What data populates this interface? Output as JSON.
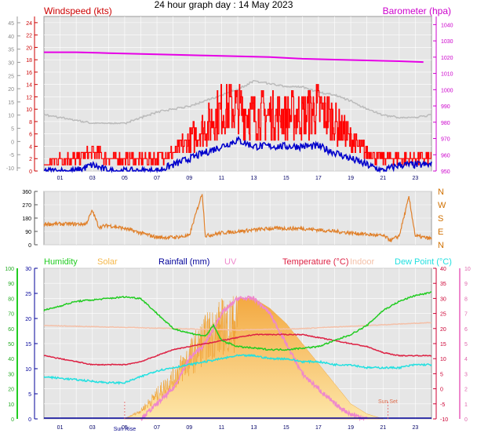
{
  "title": "24 hour graph day : 14 May 2023",
  "colors": {
    "wind_gust": "#ff0000",
    "wind_avg": "#0000cc",
    "barometer": "#e600e6",
    "temp_outdoor_prev": "#bbbbbb",
    "wind_dir": "#e0802a",
    "humidity": "#22cc22",
    "solar": "#f5b84a",
    "rainfall": "#000099",
    "uv": "#ee88cc",
    "temperature": "#dd2244",
    "indoor": "#f4c0a8",
    "dew_point": "#22e0e0",
    "panel_bg": "#e6e6e6",
    "grid": "#ffffff",
    "sun_line": "#e86060"
  },
  "chart_data": [
    {
      "type": "line",
      "name": "wind-barometer",
      "left_axis_outer": {
        "ticks": [
          "45",
          "40",
          "35",
          "30",
          "25",
          "20",
          "15",
          "10",
          "5",
          "0",
          "-5",
          "-10"
        ],
        "color": "#888888"
      },
      "left_axis_inner": {
        "label": "Windspeed (kts)",
        "ticks": [
          "24",
          "22",
          "20",
          "18",
          "16",
          "14",
          "12",
          "10",
          "8",
          "6",
          "4",
          "2",
          "0"
        ],
        "range": [
          0,
          25
        ],
        "color": "#cc0000"
      },
      "right_axis": {
        "label": "Barometer (hpa)",
        "ticks": [
          "1040",
          "1030",
          "1020",
          "1010",
          "1000",
          "990",
          "980",
          "970",
          "960",
          "950"
        ],
        "range": [
          950,
          1045
        ],
        "color": "#cc00cc"
      },
      "x_ticks": [
        "01",
        "03",
        "05",
        "07",
        "09",
        "11",
        "13",
        "15",
        "17",
        "19",
        "21",
        "23"
      ],
      "series": [
        {
          "key": "gust",
          "hours": [
            0,
            1,
            2,
            3,
            4,
            5,
            6,
            7,
            8,
            9,
            10,
            11,
            12,
            13,
            14,
            15,
            16,
            17,
            18,
            19,
            20,
            21,
            22,
            23,
            24
          ],
          "values": [
            1,
            2,
            2,
            3,
            2,
            2,
            2,
            2,
            3,
            5,
            7,
            10,
            10,
            9,
            9,
            9,
            9,
            10,
            8,
            5,
            3,
            2,
            2,
            2,
            2
          ]
        },
        {
          "key": "avg",
          "hours": [
            0,
            1,
            2,
            3,
            4,
            5,
            6,
            7,
            8,
            9,
            10,
            11,
            12,
            13,
            14,
            15,
            16,
            17,
            18,
            19,
            20,
            21,
            22,
            23,
            24
          ],
          "values": [
            0,
            0,
            0,
            1,
            0,
            0,
            0,
            0,
            1,
            2,
            3,
            4,
            5,
            4,
            4,
            4,
            4,
            4,
            3,
            2,
            1,
            0,
            1,
            1,
            1
          ]
        },
        {
          "key": "barometer",
          "hours": [
            0,
            2,
            4,
            6,
            8,
            10,
            12,
            14,
            16,
            18,
            20,
            22,
            23.5
          ],
          "values": [
            1023,
            1023,
            1022.5,
            1022,
            1021.5,
            1021,
            1020.5,
            1020,
            1019,
            1018.5,
            1018,
            1017.5,
            1017
          ]
        },
        {
          "key": "grey",
          "hours": [
            0,
            1,
            2,
            3,
            4,
            5,
            6,
            7,
            8,
            9,
            10,
            11,
            12,
            13,
            14,
            15,
            16,
            17,
            18,
            19,
            20,
            21,
            22,
            23,
            24
          ],
          "values": [
            10,
            9,
            8,
            7,
            7,
            7,
            9,
            11,
            12,
            13,
            15,
            17,
            19,
            22,
            21,
            20,
            20,
            18,
            17,
            15,
            12,
            10,
            9,
            9,
            10
          ]
        }
      ]
    },
    {
      "type": "line",
      "name": "wind-direction",
      "left_axis": {
        "ticks": [
          "360",
          "270",
          "180",
          "90",
          "0"
        ],
        "range": [
          0,
          360
        ]
      },
      "right_axis": {
        "ticks": [
          "N",
          "W",
          "S",
          "E",
          "N"
        ]
      },
      "series": [
        {
          "key": "direction",
          "hours": [
            0,
            1,
            2,
            2.6,
            3,
            3.4,
            4,
            5,
            6,
            7,
            8,
            9,
            9.8,
            10,
            11,
            12,
            13,
            14,
            15,
            16,
            17,
            18,
            19,
            20,
            21,
            21.5,
            22,
            22.6,
            23,
            24
          ],
          "values": [
            140,
            140,
            140,
            140,
            230,
            120,
            130,
            110,
            80,
            50,
            50,
            60,
            350,
            60,
            80,
            90,
            100,
            110,
            110,
            110,
            100,
            90,
            80,
            70,
            60,
            30,
            60,
            320,
            60,
            40
          ]
        }
      ]
    },
    {
      "type": "area",
      "name": "climate",
      "legend": [
        "Humidity",
        "Solar",
        "Rainfall (mm)",
        "UV",
        "Temperature (°C)",
        "Indoor",
        "Dew Point (°C)"
      ],
      "far_left_axis": {
        "ticks": [
          "100",
          "90",
          "80",
          "70",
          "60",
          "50",
          "40",
          "30",
          "20",
          "10",
          "0"
        ],
        "range": [
          0,
          100
        ]
      },
      "left_axis": {
        "ticks": [
          "30",
          "25",
          "20",
          "15",
          "10",
          "5",
          "0"
        ],
        "range": [
          0,
          30
        ]
      },
      "right_axis": {
        "ticks": [
          "40",
          "35",
          "30",
          "25",
          "20",
          "15",
          "10",
          "5",
          "0",
          "-5",
          "-10"
        ],
        "range": [
          -10,
          40
        ]
      },
      "far_right_axis": {
        "ticks": [
          "10",
          "9",
          "8",
          "7",
          "6",
          "5",
          "4",
          "3",
          "2",
          "1",
          "0"
        ],
        "range": [
          0,
          10
        ]
      },
      "x_ticks": [
        "01",
        "03",
        "05",
        "07",
        "09",
        "11",
        "13",
        "15",
        "17",
        "19",
        "21",
        "23"
      ],
      "annotations": [
        {
          "label": "Sun Rise",
          "hour": 5.0
        },
        {
          "label": "Sun Set",
          "hour": 21.3
        }
      ],
      "series": [
        {
          "key": "humidity",
          "hours": [
            0,
            2,
            4,
            5,
            6,
            7,
            8,
            9,
            10,
            10.5,
            11,
            12,
            13,
            14,
            15,
            16,
            17,
            18,
            19,
            20,
            21,
            22,
            23,
            24
          ],
          "values": [
            72,
            78,
            80,
            81,
            80,
            70,
            60,
            57,
            55,
            62,
            52,
            48,
            47,
            46,
            46,
            47,
            48,
            52,
            56,
            62,
            72,
            78,
            82,
            84
          ]
        },
        {
          "key": "temperature",
          "hours": [
            0,
            1,
            2,
            3,
            4,
            5,
            6,
            7,
            8,
            9,
            10,
            11,
            12,
            13,
            14,
            15,
            16,
            17,
            18,
            19,
            20,
            21,
            22,
            23,
            24
          ],
          "values": [
            11,
            10,
            9,
            8,
            8,
            8,
            9,
            11,
            13,
            14,
            15,
            16,
            17,
            18,
            18,
            18,
            18,
            17,
            16,
            15,
            14,
            12,
            11,
            11,
            11
          ]
        },
        {
          "key": "dew_point",
          "hours": [
            0,
            2,
            4,
            5,
            6,
            7,
            8,
            9,
            10,
            11,
            12,
            13,
            14,
            15,
            16,
            17,
            18,
            19,
            20,
            21,
            22,
            23,
            24
          ],
          "values": [
            4,
            3,
            2,
            2,
            4,
            6,
            7,
            8,
            9,
            10,
            11,
            11,
            10,
            10,
            9,
            9,
            8,
            8,
            7,
            7,
            7,
            8,
            8
          ]
        },
        {
          "key": "indoor",
          "hours": [
            0,
            4,
            8,
            12,
            16,
            20,
            24
          ],
          "values": [
            21,
            20.5,
            20,
            19.5,
            20,
            21,
            22
          ]
        },
        {
          "key": "solar",
          "hours": [
            5,
            6,
            7,
            8,
            9,
            10,
            11,
            12,
            13,
            14,
            15,
            16,
            17,
            18,
            19,
            20,
            21
          ],
          "values": [
            0,
            2,
            6,
            10,
            15,
            20,
            23,
            24,
            24,
            22,
            19,
            15,
            11,
            7,
            3,
            1,
            0
          ]
        },
        {
          "key": "uv",
          "hours": [
            6,
            7,
            8,
            9,
            10,
            11,
            12,
            13,
            14,
            15,
            16,
            17,
            18,
            19,
            20
          ],
          "values": [
            0,
            1,
            2,
            4,
            5,
            7,
            8,
            8,
            7,
            5,
            3,
            2,
            1,
            0.3,
            0
          ]
        }
      ]
    }
  ]
}
